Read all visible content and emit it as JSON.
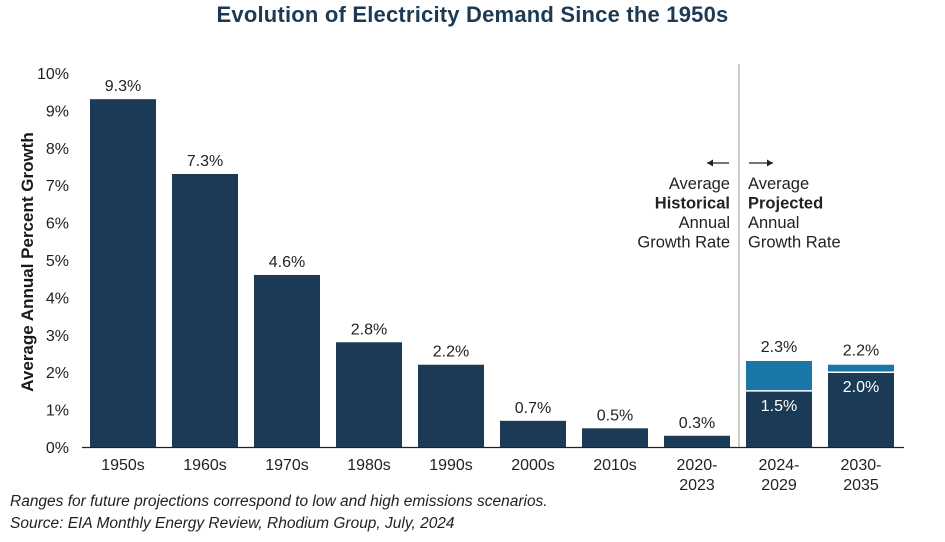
{
  "title": "Evolution of Electricity Demand Since the 1950s",
  "chart_data": {
    "type": "bar",
    "title": "Evolution of Electricity Demand Since the 1950s",
    "ylabel": "Average Annual Percent Growth",
    "xlabel": "",
    "ylim": [
      0,
      10
    ],
    "yticks": [
      "0%",
      "1%",
      "2%",
      "3%",
      "4%",
      "5%",
      "6%",
      "7%",
      "8%",
      "9%",
      "10%"
    ],
    "grid": false,
    "categories": [
      [
        "1950s"
      ],
      [
        "1960s"
      ],
      [
        "1970s"
      ],
      [
        "1980s"
      ],
      [
        "1990s"
      ],
      [
        "2000s"
      ],
      [
        "2010s"
      ],
      [
        "2020-",
        "2023"
      ],
      [
        "2024-",
        "2029"
      ],
      [
        "2030-",
        "2035"
      ]
    ],
    "series": [
      {
        "name": "Historical",
        "values": [
          9.3,
          7.3,
          4.6,
          2.8,
          2.2,
          0.7,
          0.5,
          0.3,
          null,
          null
        ],
        "labels": [
          "9.3%",
          "7.3%",
          "4.6%",
          "2.8%",
          "2.2%",
          "0.7%",
          "0.5%",
          "0.3%",
          null,
          null
        ]
      },
      {
        "name": "Projected (low)",
        "values": [
          null,
          null,
          null,
          null,
          null,
          null,
          null,
          null,
          1.5,
          2.0
        ],
        "labels": [
          null,
          null,
          null,
          null,
          null,
          null,
          null,
          null,
          "1.5%",
          "2.0%"
        ]
      },
      {
        "name": "Projected (high)",
        "values": [
          null,
          null,
          null,
          null,
          null,
          null,
          null,
          null,
          2.3,
          2.2
        ],
        "labels": [
          null,
          null,
          null,
          null,
          null,
          null,
          null,
          null,
          "2.3%",
          "2.2%"
        ]
      }
    ],
    "divider_after_index": 7,
    "annotations": {
      "historical": {
        "arrow": "←",
        "lines": [
          [
            "Average",
            false
          ],
          [
            "Historical",
            true
          ],
          [
            "Annual",
            false
          ],
          [
            "Growth Rate",
            false
          ]
        ]
      },
      "projected": {
        "arrow": "→",
        "lines": [
          [
            "Average",
            false
          ],
          [
            "Projected",
            true
          ],
          [
            "Annual",
            false
          ],
          [
            "Growth Rate",
            false
          ]
        ]
      }
    }
  },
  "colors": {
    "bar": "#1b3a55",
    "projected_high": "#1a76a6",
    "title": "#1c3a54",
    "axis": "#222222",
    "divider": "#9a9a9a"
  },
  "footnotes": [
    "Ranges for future projections correspond to low and high emissions scenarios.",
    "Source: EIA Monthly Energy Review, Rhodium Group, July, 2024"
  ]
}
